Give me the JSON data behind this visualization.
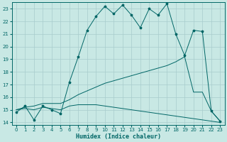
{
  "xlabel": "Humidex (Indice chaleur)",
  "bg_color": "#c8e8e4",
  "grid_color": "#a8cccc",
  "line_color": "#006666",
  "xlim": [
    -0.5,
    23.5
  ],
  "ylim": [
    13.8,
    23.5
  ],
  "xticks": [
    0,
    1,
    2,
    3,
    4,
    5,
    6,
    7,
    8,
    9,
    10,
    11,
    12,
    13,
    14,
    15,
    16,
    17,
    18,
    19,
    20,
    21,
    22,
    23
  ],
  "yticks": [
    14,
    15,
    16,
    17,
    18,
    19,
    20,
    21,
    22,
    23
  ],
  "line1_x": [
    0,
    1,
    2,
    3,
    4,
    5,
    6,
    7,
    8,
    9,
    10,
    11,
    12,
    13,
    14,
    15,
    16,
    17,
    18,
    19,
    20,
    21,
    22,
    23
  ],
  "line1_y": [
    14.8,
    15.3,
    14.2,
    15.3,
    15.0,
    14.7,
    17.2,
    19.2,
    21.3,
    22.4,
    23.2,
    22.6,
    23.3,
    22.5,
    21.5,
    23.0,
    22.5,
    23.4,
    21.0,
    19.3,
    21.3,
    21.2,
    14.9,
    14.1
  ],
  "line2_x": [
    0,
    1,
    2,
    3,
    4,
    5,
    6,
    7,
    8,
    9,
    10,
    11,
    12,
    13,
    14,
    15,
    16,
    17,
    18,
    19,
    20,
    21,
    22,
    23
  ],
  "line2_y": [
    15.0,
    15.2,
    15.3,
    15.5,
    15.5,
    15.5,
    15.8,
    16.2,
    16.5,
    16.8,
    17.1,
    17.3,
    17.5,
    17.7,
    17.9,
    18.1,
    18.3,
    18.5,
    18.8,
    19.2,
    16.4,
    16.4,
    14.9,
    14.1
  ],
  "line3_x": [
    0,
    1,
    2,
    3,
    4,
    5,
    6,
    7,
    8,
    9,
    10,
    11,
    12,
    13,
    14,
    15,
    16,
    17,
    18,
    19,
    20,
    21,
    22,
    23
  ],
  "line3_y": [
    15.0,
    15.1,
    15.0,
    15.2,
    15.1,
    15.0,
    15.3,
    15.4,
    15.4,
    15.4,
    15.3,
    15.2,
    15.1,
    15.0,
    14.9,
    14.8,
    14.7,
    14.6,
    14.5,
    14.4,
    14.3,
    14.2,
    14.1,
    14.0
  ],
  "marker_size": 2.5
}
